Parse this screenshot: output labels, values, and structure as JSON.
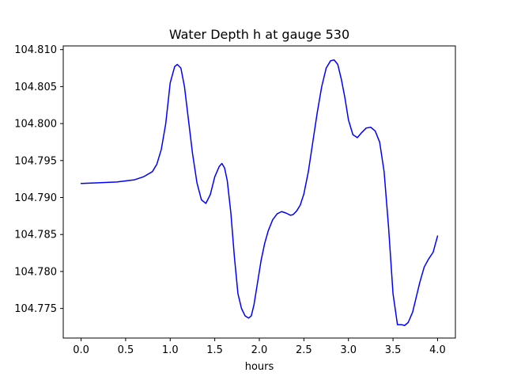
{
  "chart_data": {
    "type": "line",
    "title": "Water Depth h at gauge 530",
    "xlabel": "hours",
    "ylabel": "",
    "xlim": [
      -0.2,
      4.2
    ],
    "ylim": [
      104.771,
      104.8105
    ],
    "xticks": [
      0.0,
      0.5,
      1.0,
      1.5,
      2.0,
      2.5,
      3.0,
      3.5,
      4.0
    ],
    "xtick_labels": [
      "0.0",
      "0.5",
      "1.0",
      "1.5",
      "2.0",
      "2.5",
      "3.0",
      "3.5",
      "4.0"
    ],
    "yticks": [
      104.775,
      104.78,
      104.785,
      104.79,
      104.795,
      104.8,
      104.805,
      104.81
    ],
    "ytick_labels": [
      "104.775",
      "104.780",
      "104.785",
      "104.790",
      "104.795",
      "104.800",
      "104.805",
      "104.810"
    ],
    "grid": false,
    "series": [
      {
        "color": "#0000ff",
        "x": [
          0.0,
          0.2,
          0.4,
          0.6,
          0.7,
          0.8,
          0.85,
          0.9,
          0.95,
          1.0,
          1.05,
          1.08,
          1.12,
          1.16,
          1.2,
          1.25,
          1.3,
          1.35,
          1.4,
          1.45,
          1.5,
          1.55,
          1.58,
          1.61,
          1.64,
          1.68,
          1.72,
          1.76,
          1.8,
          1.84,
          1.88,
          1.91,
          1.94,
          1.98,
          2.02,
          2.06,
          2.1,
          2.15,
          2.2,
          2.25,
          2.3,
          2.35,
          2.38,
          2.42,
          2.46,
          2.5,
          2.55,
          2.6,
          2.65,
          2.7,
          2.75,
          2.8,
          2.84,
          2.88,
          2.92,
          2.96,
          3.0,
          3.05,
          3.1,
          3.15,
          3.2,
          3.25,
          3.3,
          3.35,
          3.4,
          3.45,
          3.5,
          3.55,
          3.6,
          3.63,
          3.67,
          3.72,
          3.76,
          3.8,
          3.85,
          3.9,
          3.95,
          4.0
        ],
        "y": [
          104.7919,
          104.792,
          104.7921,
          104.7924,
          104.7928,
          104.7935,
          104.7945,
          104.7965,
          104.8,
          104.8055,
          104.8077,
          104.808,
          104.8075,
          104.805,
          104.801,
          104.796,
          104.792,
          104.7897,
          104.7892,
          104.7904,
          104.7928,
          104.7942,
          104.7946,
          104.794,
          104.7923,
          104.788,
          104.782,
          104.777,
          104.775,
          104.774,
          104.7737,
          104.774,
          104.7755,
          104.7785,
          104.7815,
          104.7838,
          104.7855,
          104.787,
          104.7878,
          104.7881,
          104.7879,
          104.7876,
          104.7877,
          104.7882,
          104.789,
          104.7905,
          104.7935,
          104.7975,
          104.8015,
          104.805,
          104.8075,
          104.8085,
          104.8086,
          104.808,
          104.806,
          104.8035,
          104.8005,
          104.7985,
          104.7981,
          104.7988,
          104.7994,
          104.7995,
          104.799,
          104.7975,
          104.7935,
          104.786,
          104.777,
          104.7728,
          104.7728,
          104.7727,
          104.7731,
          104.7745,
          104.7765,
          104.7785,
          104.7806,
          104.7817,
          104.7826,
          104.7848
        ]
      }
    ]
  }
}
